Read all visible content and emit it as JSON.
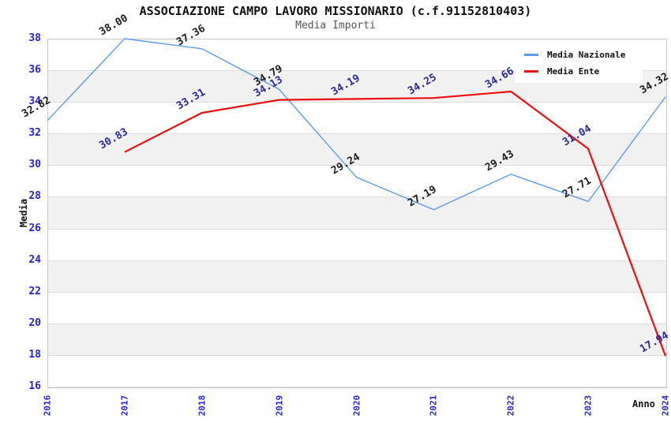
{
  "header": {
    "title": "ASSOCIAZIONE CAMPO LAVORO MISSIONARIO (c.f.91152810403)",
    "subtitle": "Media Importi"
  },
  "axes": {
    "y_title": "Media",
    "x_title": "Anno",
    "y_ticks": [
      38,
      36,
      34,
      32,
      30,
      28,
      26,
      24,
      22,
      20,
      18,
      16
    ],
    "x_ticks": [
      "2016",
      "2017",
      "2018",
      "2019",
      "2020",
      "2021",
      "2022",
      "2023",
      "2024"
    ]
  },
  "legend": {
    "items": [
      {
        "label": "Media Nazionale",
        "color": "#5d9be6"
      },
      {
        "label": "Media Ente",
        "color": "#ea0e0e"
      }
    ]
  },
  "chart_data": {
    "type": "line",
    "title": "ASSOCIAZIONE CAMPO LAVORO MISSIONARIO (c.f.91152810403)",
    "subtitle": "Media Importi",
    "xlabel": "Anno",
    "ylabel": "Media",
    "x": [
      2016,
      2017,
      2018,
      2019,
      2020,
      2021,
      2022,
      2023,
      2024
    ],
    "ylim": [
      16,
      38
    ],
    "y_tick_step": 2,
    "grid": "horizontal-gridlines-with-alternating-bands",
    "legend_position": "top-right-inside",
    "markers": "none",
    "point_label_rotation_deg": -30,
    "series": [
      {
        "name": "Media Nazionale",
        "color": "#5d9be6",
        "label_color": "#1a1a1a",
        "values": [
          32.82,
          38.0,
          37.36,
          34.79,
          29.24,
          27.19,
          29.43,
          27.71,
          34.32
        ]
      },
      {
        "name": "Media Ente",
        "color": "#ea0e0e",
        "label_color": "#28289b",
        "values": [
          null,
          30.83,
          33.31,
          34.13,
          34.19,
          34.25,
          34.66,
          31.04,
          17.94
        ]
      }
    ],
    "colors": {
      "tick_label": "#2525cd",
      "band_gray": "#f1f1f1",
      "gridline": "#dcdcdc",
      "plot_border": "#c9c9c9",
      "subtitle": "#555555"
    }
  }
}
